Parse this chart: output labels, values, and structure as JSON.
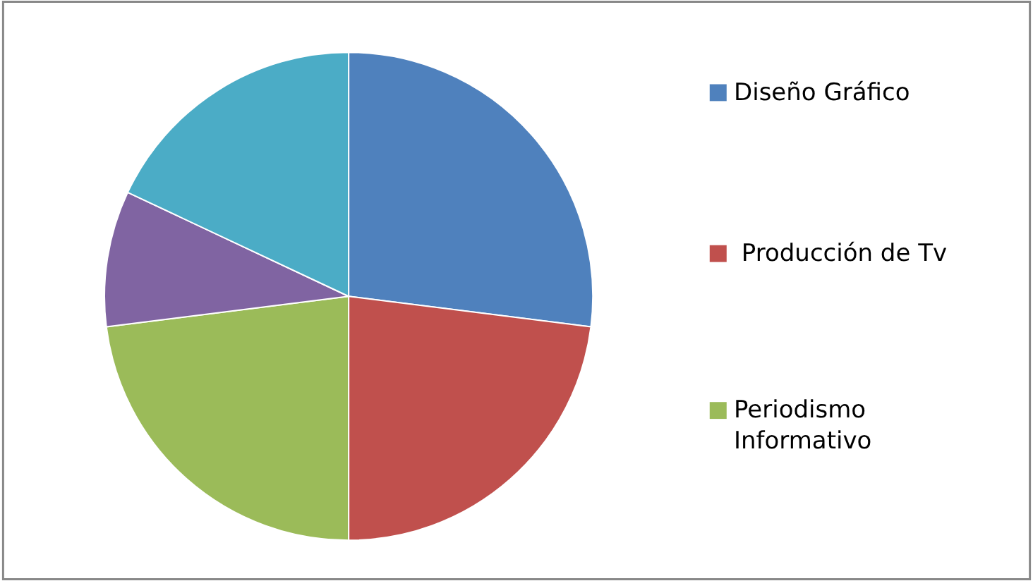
{
  "chart_data": {
    "type": "pie",
    "categories": [
      "Diseño Gráfico",
      " Producción de Tv",
      "Periodismo Informativo",
      null,
      null
    ],
    "values": [
      27,
      23,
      23,
      9,
      18
    ],
    "colors": [
      "#4f81bd",
      "#c0504d",
      "#9bbb59",
      "#8064a2",
      "#4bacc6"
    ],
    "legend": "right"
  }
}
